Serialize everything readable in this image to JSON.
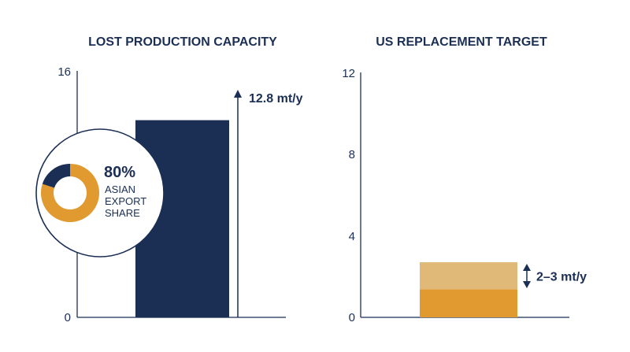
{
  "chart_data": [
    {
      "type": "bar",
      "title": "LOST PRODUCTION CAPACITY",
      "ylim": [
        0,
        16
      ],
      "yticks": [
        "0",
        "16"
      ],
      "values": [
        12.8
      ],
      "annotation": "12.8 mt/y",
      "callout": {
        "donut_value": 80,
        "percent_label": "80%",
        "lines": [
          "ASIAN",
          "EXPORT",
          "SHARE"
        ]
      },
      "colors": {
        "bar": "#1b2f55",
        "donut_main": "#e09a2f",
        "donut_rest": "#1b2f55"
      }
    },
    {
      "type": "bar",
      "title": "US REPLACEMENT TARGET",
      "ylim": [
        0,
        12
      ],
      "yticks": [
        "0",
        "4",
        "8",
        "12"
      ],
      "range": [
        2,
        3
      ],
      "annotation": "2–3 mt/y",
      "colors": {
        "low": "#e09a2f",
        "high": "#e0b877"
      }
    }
  ]
}
